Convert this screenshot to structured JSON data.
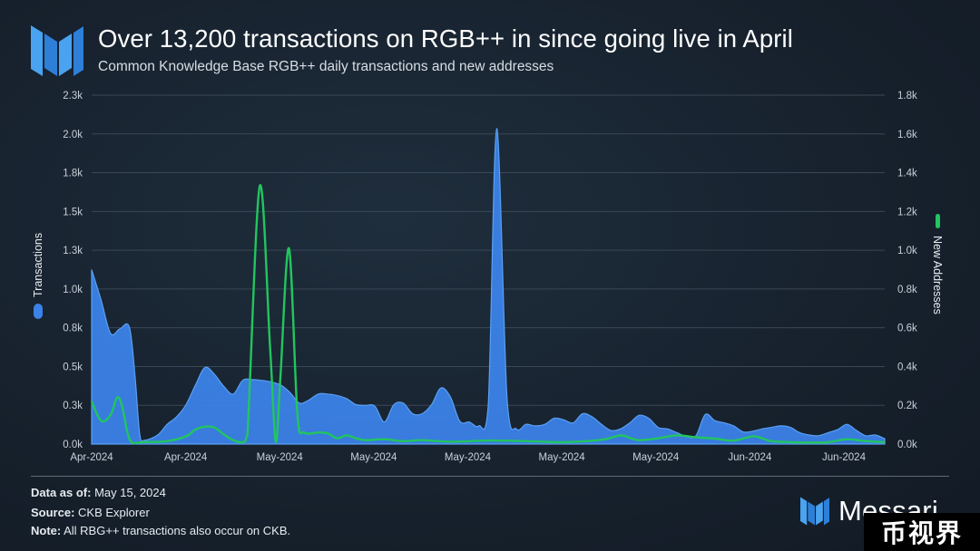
{
  "header": {
    "title": "Over 13,200 transactions on RGB++ in since going live in April",
    "subtitle": "Common Knowledge Base RGB++ daily transactions and new addresses"
  },
  "footer": {
    "data_as_of_label": "Data as of:",
    "data_as_of_value": " May 15, 2024",
    "source_label": "Source:",
    "source_value": " CKB Explorer",
    "note_label": "Note:",
    "note_value": " All RBG++ transactions also occur on CKB.",
    "brand": "Messari",
    "watermark": "币视界"
  },
  "colors": {
    "transactions": "#3b82e8",
    "new_addresses": "#22c55e",
    "grid": "#3a4756",
    "background": "#17222e"
  },
  "icons": {
    "logo": "messari-logo-icon",
    "legend_transactions": "blue-area-swatch-icon",
    "legend_new_addresses": "green-line-swatch-icon"
  },
  "chart_data": {
    "type": "area",
    "title": "Over 13,200 transactions on RGB++ in since going live in April",
    "subtitle": "Common Knowledge Base RGB++ daily transactions and new addresses",
    "y_left_label": "Transactions",
    "y_right_label": "New Addresses",
    "y_left_range": [
      0,
      2300
    ],
    "y_right_range": [
      0,
      1800
    ],
    "y_left_ticks": [
      "0.0k",
      "0.3k",
      "0.5k",
      "0.8k",
      "1.0k",
      "1.3k",
      "1.5k",
      "1.8k",
      "2.0k",
      "2.3k"
    ],
    "y_right_ticks": [
      "0.0k",
      "0.2k",
      "0.4k",
      "0.6k",
      "0.8k",
      "1.0k",
      "1.2k",
      "1.4k",
      "1.6k",
      "1.8k"
    ],
    "x_ticks": [
      "Apr-2024",
      "Apr-2024",
      "May-2024",
      "May-2024",
      "May-2024",
      "May-2024",
      "May-2024",
      "Jun-2024",
      "Jun-2024"
    ],
    "x_day_range": [
      0,
      84
    ],
    "grid": "horizontal",
    "legend_placement": "axis-labels",
    "series": [
      {
        "name": "Transactions",
        "axis": "left",
        "kind": "area",
        "points": [
          [
            0,
            1150
          ],
          [
            1,
            950
          ],
          [
            2,
            730
          ],
          [
            3,
            760
          ],
          [
            4,
            770
          ],
          [
            4.6,
            440
          ],
          [
            5.1,
            60
          ],
          [
            5.6,
            25
          ],
          [
            7,
            60
          ],
          [
            8,
            130
          ],
          [
            9,
            180
          ],
          [
            10,
            260
          ],
          [
            11,
            390
          ],
          [
            12,
            505
          ],
          [
            13,
            460
          ],
          [
            14,
            380
          ],
          [
            15,
            330
          ],
          [
            16,
            420
          ],
          [
            17,
            425
          ],
          [
            18,
            420
          ],
          [
            19,
            410
          ],
          [
            20,
            390
          ],
          [
            21,
            340
          ],
          [
            22,
            270
          ],
          [
            23,
            290
          ],
          [
            24,
            330
          ],
          [
            25,
            330
          ],
          [
            26,
            320
          ],
          [
            27,
            300
          ],
          [
            28,
            260
          ],
          [
            29,
            255
          ],
          [
            30,
            250
          ],
          [
            31,
            145
          ],
          [
            32,
            260
          ],
          [
            33,
            270
          ],
          [
            34,
            200
          ],
          [
            35,
            200
          ],
          [
            36,
            260
          ],
          [
            37,
            370
          ],
          [
            38,
            310
          ],
          [
            39,
            150
          ],
          [
            40,
            145
          ],
          [
            41,
            120
          ],
          [
            42,
            250
          ],
          [
            42.9,
            2080
          ],
          [
            44,
            300
          ],
          [
            45,
            100
          ],
          [
            46,
            130
          ],
          [
            47,
            120
          ],
          [
            48,
            130
          ],
          [
            49,
            170
          ],
          [
            50,
            160
          ],
          [
            51,
            140
          ],
          [
            52,
            200
          ],
          [
            53,
            180
          ],
          [
            54,
            130
          ],
          [
            55,
            90
          ],
          [
            56,
            100
          ],
          [
            57,
            140
          ],
          [
            58,
            190
          ],
          [
            59,
            170
          ],
          [
            60,
            110
          ],
          [
            61,
            100
          ],
          [
            62,
            75
          ],
          [
            63,
            50
          ],
          [
            64,
            55
          ],
          [
            65,
            195
          ],
          [
            66,
            155
          ],
          [
            67,
            140
          ],
          [
            68,
            120
          ],
          [
            69,
            80
          ],
          [
            70,
            85
          ],
          [
            71,
            100
          ],
          [
            72,
            110
          ],
          [
            73,
            120
          ],
          [
            74,
            110
          ],
          [
            75,
            75
          ],
          [
            76,
            60
          ],
          [
            77,
            55
          ],
          [
            78,
            75
          ],
          [
            79,
            95
          ],
          [
            80,
            130
          ],
          [
            81,
            90
          ],
          [
            82,
            55
          ],
          [
            83,
            60
          ],
          [
            84,
            35
          ]
        ]
      },
      {
        "name": "New Addresses",
        "axis": "right",
        "kind": "line",
        "points": [
          [
            0,
            220
          ],
          [
            1,
            120
          ],
          [
            2,
            150
          ],
          [
            2.7,
            240
          ],
          [
            3.2,
            200
          ],
          [
            3.8,
            60
          ],
          [
            4.3,
            8
          ],
          [
            5.5,
            10
          ],
          [
            8,
            15
          ],
          [
            10,
            40
          ],
          [
            11,
            75
          ],
          [
            12,
            90
          ],
          [
            13,
            85
          ],
          [
            14,
            50
          ],
          [
            15,
            20
          ],
          [
            16,
            10
          ],
          [
            16.5,
            50
          ],
          [
            17.8,
            1330
          ],
          [
            18.9,
            500
          ],
          [
            19.5,
            10
          ],
          [
            20,
            350
          ],
          [
            20.9,
            1010
          ],
          [
            21.8,
            150
          ],
          [
            22.5,
            60
          ],
          [
            24,
            60
          ],
          [
            25,
            55
          ],
          [
            26,
            30
          ],
          [
            27,
            45
          ],
          [
            28,
            30
          ],
          [
            29,
            20
          ],
          [
            31,
            25
          ],
          [
            33,
            15
          ],
          [
            35,
            20
          ],
          [
            38,
            12
          ],
          [
            42,
            18
          ],
          [
            46,
            15
          ],
          [
            50,
            10
          ],
          [
            54,
            22
          ],
          [
            56,
            45
          ],
          [
            57,
            32
          ],
          [
            58,
            20
          ],
          [
            60,
            30
          ],
          [
            62,
            45
          ],
          [
            64,
            35
          ],
          [
            66,
            28
          ],
          [
            68,
            18
          ],
          [
            70,
            40
          ],
          [
            71,
            30
          ],
          [
            72,
            15
          ],
          [
            74,
            10
          ],
          [
            76,
            8
          ],
          [
            78,
            10
          ],
          [
            80,
            25
          ],
          [
            82,
            15
          ],
          [
            84,
            10
          ]
        ]
      }
    ]
  }
}
